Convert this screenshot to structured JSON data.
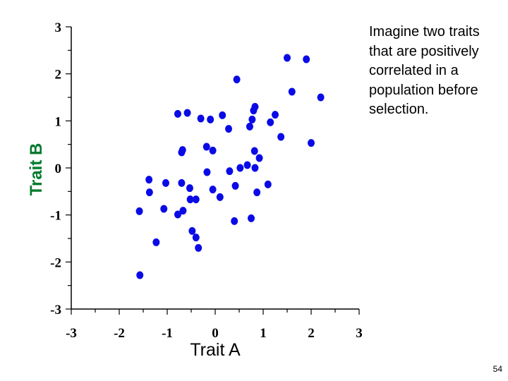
{
  "caption": "Imagine two traits that are positively correlated in a population before selection.",
  "page_number": "54",
  "colors": {
    "points": "#0a0ae6",
    "ylabel": "#007a2e",
    "axis": "#000000"
  },
  "chart_data": {
    "type": "scatter",
    "title": "",
    "xlabel": "Trait A",
    "ylabel": "Trait B",
    "xlim": [
      -3,
      3
    ],
    "ylim": [
      -3,
      3
    ],
    "xticks": [
      "-3",
      "-2",
      "-1",
      "0",
      "1",
      "2",
      "3"
    ],
    "yticks": [
      "3",
      "2",
      "1",
      "0",
      "-1",
      "-2",
      "-3"
    ],
    "grid": false,
    "points": [
      {
        "x": -1.57,
        "y": -2.28
      },
      {
        "x": -1.58,
        "y": -0.92
      },
      {
        "x": -1.38,
        "y": -0.25
      },
      {
        "x": -1.37,
        "y": -0.52
      },
      {
        "x": -1.23,
        "y": -1.58
      },
      {
        "x": -1.03,
        "y": -0.32
      },
      {
        "x": -1.07,
        "y": -0.87
      },
      {
        "x": -0.78,
        "y": 1.15
      },
      {
        "x": -0.78,
        "y": -0.99
      },
      {
        "x": -0.7,
        "y": 0.33
      },
      {
        "x": -0.68,
        "y": 0.38
      },
      {
        "x": -0.7,
        "y": -0.32
      },
      {
        "x": -0.67,
        "y": -0.91
      },
      {
        "x": -0.58,
        "y": 1.17
      },
      {
        "x": -0.53,
        "y": -0.43
      },
      {
        "x": -0.52,
        "y": -0.67
      },
      {
        "x": -0.48,
        "y": -1.34
      },
      {
        "x": -0.4,
        "y": -1.48
      },
      {
        "x": -0.4,
        "y": -0.67
      },
      {
        "x": -0.35,
        "y": -1.7
      },
      {
        "x": -0.3,
        "y": 1.05
      },
      {
        "x": -0.18,
        "y": 0.45
      },
      {
        "x": -0.17,
        "y": -0.09
      },
      {
        "x": -0.1,
        "y": 1.03
      },
      {
        "x": -0.05,
        "y": 0.37
      },
      {
        "x": -0.05,
        "y": -0.46
      },
      {
        "x": 0.1,
        "y": -0.62
      },
      {
        "x": 0.15,
        "y": 1.12
      },
      {
        "x": 0.28,
        "y": 0.83
      },
      {
        "x": 0.3,
        "y": -0.07
      },
      {
        "x": 0.42,
        "y": -0.38
      },
      {
        "x": 0.4,
        "y": -1.13
      },
      {
        "x": 0.45,
        "y": 1.88
      },
      {
        "x": 0.52,
        "y": 0.0
      },
      {
        "x": 0.67,
        "y": 0.06
      },
      {
        "x": 0.72,
        "y": 0.88
      },
      {
        "x": 0.77,
        "y": 1.03
      },
      {
        "x": 0.75,
        "y": -1.07
      },
      {
        "x": 0.8,
        "y": 1.22
      },
      {
        "x": 0.83,
        "y": 1.3
      },
      {
        "x": 0.82,
        "y": 0.36
      },
      {
        "x": 0.83,
        "y": 0.0
      },
      {
        "x": 0.87,
        "y": -0.52
      },
      {
        "x": 0.92,
        "y": 0.21
      },
      {
        "x": 1.1,
        "y": -0.35
      },
      {
        "x": 1.15,
        "y": 0.97
      },
      {
        "x": 1.25,
        "y": 1.13
      },
      {
        "x": 1.37,
        "y": 0.66
      },
      {
        "x": 1.5,
        "y": 2.34
      },
      {
        "x": 1.6,
        "y": 1.62
      },
      {
        "x": 1.9,
        "y": 2.31
      },
      {
        "x": 2.0,
        "y": 0.53
      },
      {
        "x": 2.2,
        "y": 1.5
      }
    ]
  }
}
